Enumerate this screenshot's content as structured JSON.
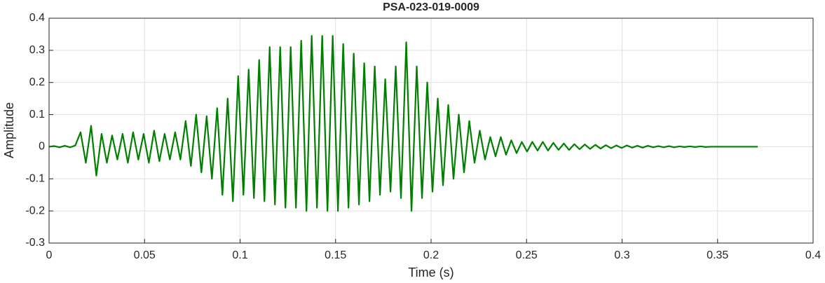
{
  "chart_data": {
    "type": "line",
    "title": "PSA-023-019-0009",
    "x_label": "Time (s)",
    "y_label": "Amplitude",
    "color": "#007f00",
    "grid": true,
    "xlim": [
      0,
      0.4
    ],
    "xticks": [
      0,
      0.05,
      0.1,
      0.15,
      0.2,
      0.25,
      0.3,
      0.35,
      0.4
    ],
    "ylim": [
      -0.3,
      0.4
    ],
    "yticks": [
      -0.3,
      -0.2,
      -0.1,
      0,
      0.1,
      0.2,
      0.3,
      0.4
    ],
    "x": [
      0,
      0.00275,
      0.0055,
      0.00825,
      0.011,
      0.01375,
      0.0165,
      0.01925,
      0.022,
      0.02475,
      0.0275,
      0.03025,
      0.033,
      0.03575,
      0.0385,
      0.04125,
      0.044,
      0.04675,
      0.0495,
      0.05225,
      0.055,
      0.05775,
      0.0605,
      0.06325,
      0.066,
      0.06875,
      0.0715,
      0.07425,
      0.077,
      0.07975,
      0.0825,
      0.08525,
      0.088,
      0.09075,
      0.0935,
      0.09625,
      0.099,
      0.10175,
      0.1045,
      0.10725,
      0.11,
      0.11275,
      0.1155,
      0.11825,
      0.121,
      0.12375,
      0.1265,
      0.12925,
      0.132,
      0.13475,
      0.1375,
      0.14025,
      0.143,
      0.14575,
      0.1485,
      0.15125,
      0.154,
      0.15675,
      0.1595,
      0.16225,
      0.165,
      0.16775,
      0.1705,
      0.17325,
      0.176,
      0.17875,
      0.1815,
      0.18425,
      0.187,
      0.18975,
      0.1925,
      0.19525,
      0.198,
      0.20075,
      0.2035,
      0.20625,
      0.209,
      0.21175,
      0.2145,
      0.21725,
      0.22,
      0.22275,
      0.2255,
      0.22825,
      0.231,
      0.23375,
      0.2365,
      0.23925,
      0.242,
      0.24475,
      0.2475,
      0.25025,
      0.253,
      0.25575,
      0.2585,
      0.26125,
      0.264,
      0.26675,
      0.2695,
      0.27225,
      0.275,
      0.27775,
      0.2805,
      0.28325,
      0.286,
      0.28875,
      0.2915,
      0.29425,
      0.297,
      0.29975,
      0.3025,
      0.30525,
      0.308,
      0.31075,
      0.3135,
      0.31625,
      0.319,
      0.32175,
      0.3245,
      0.32725,
      0.33,
      0.33275,
      0.3355,
      0.33825,
      0.341,
      0.34375,
      0.3465,
      0.34925,
      0.371
    ],
    "values": [
      0,
      0.002,
      -0.002,
      0.003,
      -0.002,
      0.004,
      0.045,
      -0.05,
      0.065,
      -0.09,
      0.04,
      -0.05,
      0.035,
      -0.04,
      0.04,
      -0.05,
      0.045,
      -0.04,
      0.04,
      -0.05,
      0.05,
      -0.045,
      0.04,
      -0.04,
      0.045,
      -0.04,
      0.08,
      -0.06,
      0.1,
      -0.08,
      0.095,
      -0.1,
      0.12,
      -0.15,
      0.15,
      -0.17,
      0.22,
      -0.15,
      0.24,
      -0.16,
      0.27,
      -0.17,
      0.31,
      -0.18,
      0.31,
      -0.19,
      0.31,
      -0.19,
      0.33,
      -0.2,
      0.345,
      -0.19,
      0.345,
      -0.2,
      0.345,
      -0.2,
      0.32,
      -0.19,
      0.29,
      -0.18,
      0.26,
      -0.17,
      0.25,
      -0.15,
      0.21,
      -0.14,
      0.25,
      -0.16,
      0.325,
      -0.2,
      0.25,
      -0.16,
      0.2,
      -0.14,
      0.15,
      -0.12,
      0.13,
      -0.1,
      0.1,
      -0.08,
      0.08,
      -0.05,
      0.05,
      -0.04,
      0.03,
      -0.03,
      0.03,
      -0.025,
      0.02,
      -0.02,
      0.015,
      -0.015,
      0.015,
      -0.012,
      0.015,
      -0.012,
      0.012,
      -0.01,
      0.01,
      -0.01,
      0.008,
      -0.008,
      0.007,
      -0.007,
      0.006,
      -0.006,
      0.005,
      -0.005,
      0.004,
      -0.004,
      0.004,
      -0.003,
      0.003,
      -0.003,
      0.003,
      -0.002,
      0.002,
      -0.002,
      0.002,
      -0.002,
      0.001,
      -0.001,
      0.001,
      -0.001,
      0.001,
      -0.001,
      0,
      0,
      0
    ]
  }
}
